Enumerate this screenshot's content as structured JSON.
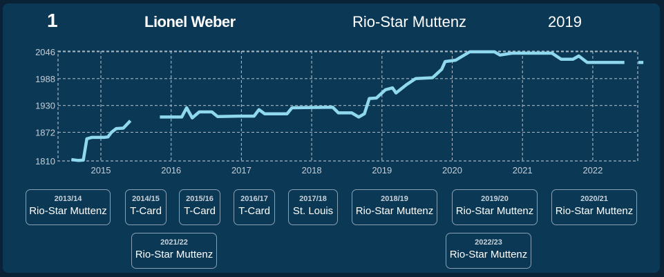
{
  "header": {
    "rank": "1",
    "player": "Lionel Weber",
    "club": "Rio-Star Muttenz",
    "year": "2019"
  },
  "colors": {
    "line": "#8fd8ee",
    "background": "#0b3854",
    "grid": "#a8b8c4"
  },
  "chart_data": {
    "type": "line",
    "title": "",
    "xlabel": "",
    "ylabel": "",
    "ylim": [
      1810,
      2060
    ],
    "xlim": [
      2014.37,
      2022.68
    ],
    "y_ticks": [
      1810,
      1872,
      1930,
      1988,
      2046
    ],
    "x_ticks": [
      2015,
      2016,
      2017,
      2018,
      2019,
      2020,
      2021,
      2022
    ],
    "grid": true,
    "series": [
      {
        "values": [
          [
            2014.58,
            1813
          ],
          [
            2014.68,
            1811
          ],
          [
            2014.75,
            1812
          ],
          [
            2014.8,
            1858
          ],
          [
            2014.87,
            1861
          ],
          [
            2015.05,
            1861
          ],
          [
            2015.1,
            1862
          ],
          [
            2015.15,
            1872
          ],
          [
            2015.22,
            1880
          ],
          [
            2015.32,
            1881
          ],
          [
            2015.42,
            1897
          ]
        ]
      },
      {
        "values": [
          [
            2015.84,
            1905
          ],
          [
            2016.15,
            1905
          ],
          [
            2016.22,
            1925
          ],
          [
            2016.3,
            1903
          ],
          [
            2016.4,
            1916
          ],
          [
            2016.58,
            1916
          ],
          [
            2016.66,
            1906
          ],
          [
            2016.95,
            1907
          ],
          [
            2017.18,
            1907
          ],
          [
            2017.25,
            1921
          ],
          [
            2017.33,
            1912
          ],
          [
            2017.65,
            1912
          ],
          [
            2017.72,
            1925
          ],
          [
            2018.3,
            1926
          ],
          [
            2018.38,
            1914
          ],
          [
            2018.57,
            1914
          ],
          [
            2018.67,
            1905
          ],
          [
            2018.75,
            1912
          ],
          [
            2018.82,
            1945
          ],
          [
            2018.92,
            1946
          ],
          [
            2019.05,
            1964
          ],
          [
            2019.15,
            1968
          ],
          [
            2019.2,
            1957
          ],
          [
            2019.35,
            1975
          ],
          [
            2019.48,
            1988
          ],
          [
            2019.72,
            1990
          ],
          [
            2019.85,
            2008
          ],
          [
            2019.9,
            2025
          ],
          [
            2020.05,
            2028
          ],
          [
            2020.15,
            2037
          ],
          [
            2020.25,
            2046
          ],
          [
            2020.6,
            2046
          ],
          [
            2020.68,
            2039
          ],
          [
            2020.85,
            2043
          ],
          [
            2021.42,
            2043
          ],
          [
            2021.55,
            2030
          ],
          [
            2021.72,
            2030
          ],
          [
            2021.8,
            2037
          ],
          [
            2021.92,
            2023
          ],
          [
            2022.45,
            2023
          ]
        ]
      },
      {
        "values": [
          [
            2022.65,
            2023
          ],
          [
            2022.72,
            2023
          ]
        ]
      }
    ]
  },
  "seasons": [
    {
      "season": "2013/14",
      "club": "Rio-Star Muttenz"
    },
    {
      "season": "2014/15",
      "club": "T-Card"
    },
    {
      "season": "2015/16",
      "club": "T-Card"
    },
    {
      "season": "2016/17",
      "club": "T-Card"
    },
    {
      "season": "2017/18",
      "club": "St. Louis"
    },
    {
      "season": "2018/19",
      "club": "Rio-Star Muttenz"
    },
    {
      "season": "2019/20",
      "club": "Rio-Star Muttenz"
    },
    {
      "season": "2020/21",
      "club": "Rio-Star Muttenz"
    },
    {
      "season": "2021/22",
      "club": "Rio-Star Muttenz"
    },
    {
      "season": "2022/23",
      "club": "Rio-Star Muttenz"
    }
  ]
}
